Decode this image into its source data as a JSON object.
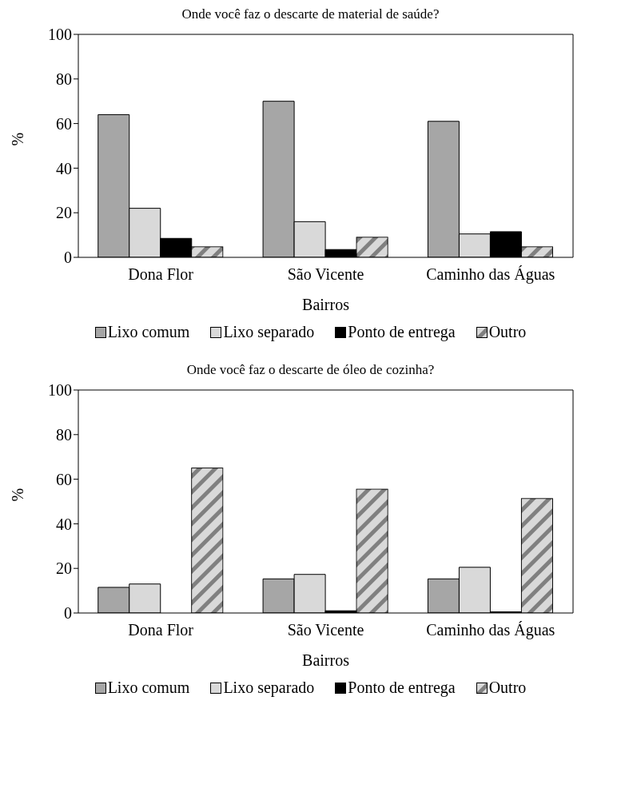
{
  "chart_data": [
    {
      "type": "bar",
      "title": "Onde você faz o descarte de material de saúde?",
      "xlabel": "Bairros",
      "ylabel": "%",
      "categories": [
        "Dona Flor",
        "São Vicente",
        "Caminho das Águas"
      ],
      "ylim": [
        0,
        100
      ],
      "yticks": [
        0,
        20,
        40,
        60,
        80,
        100
      ],
      "legend": "bottom",
      "series": [
        {
          "name": "Lixo comum",
          "color": "#a6a6a6",
          "values": [
            64,
            70,
            61
          ]
        },
        {
          "name": "Lixo separado",
          "color": "#d9d9d9",
          "values": [
            22,
            16,
            10.5
          ]
        },
        {
          "name": "Ponto de entrega",
          "color": "#000000",
          "values": [
            8.5,
            3.5,
            11.5
          ]
        },
        {
          "name": "Outro",
          "color": "#808080",
          "values": [
            4.7,
            9,
            4.7
          ]
        }
      ]
    },
    {
      "type": "bar",
      "title": "Onde você faz o descarte de óleo de cozinha?",
      "xlabel": "Bairros",
      "ylabel": "%",
      "categories": [
        "Dona Flor",
        "São Vicente",
        "Caminho das Águas"
      ],
      "ylim": [
        0,
        100
      ],
      "yticks": [
        0,
        20,
        40,
        60,
        80,
        100
      ],
      "legend": "bottom",
      "series": [
        {
          "name": "Lixo comum",
          "color": "#a6a6a6",
          "values": [
            11.5,
            15.3,
            15.3
          ]
        },
        {
          "name": "Lixo separado",
          "color": "#d9d9d9",
          "values": [
            13,
            17.3,
            20.5
          ]
        },
        {
          "name": "Ponto de entrega",
          "color": "#000000",
          "values": [
            0,
            1,
            0.5
          ]
        },
        {
          "name": "Outro",
          "color": "#808080",
          "values": [
            65,
            55.5,
            51.3
          ]
        }
      ]
    }
  ]
}
